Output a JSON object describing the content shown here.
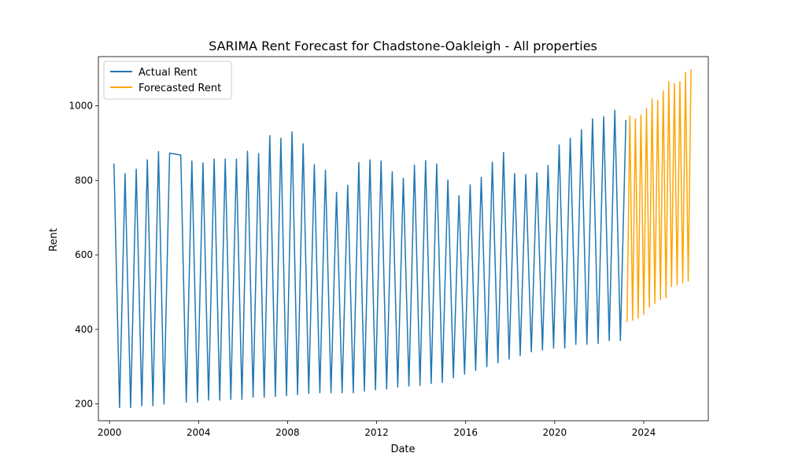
{
  "chart_data": {
    "type": "line",
    "title": "SARIMA Rent Forecast for Chadstone-Oakleigh - All properties",
    "xlabel": "Date",
    "ylabel": "Rent",
    "xlim": [
      1999.5,
      2026.9
    ],
    "ylim": [
      155,
      1132
    ],
    "x_ticks": [
      {
        "value": 2000,
        "label": "2000"
      },
      {
        "value": 2004,
        "label": "2004"
      },
      {
        "value": 2008,
        "label": "2008"
      },
      {
        "value": 2012,
        "label": "2012"
      },
      {
        "value": 2016,
        "label": "2016"
      },
      {
        "value": 2020,
        "label": "2020"
      },
      {
        "value": 2024,
        "label": "2024"
      }
    ],
    "y_ticks": [
      {
        "value": 200,
        "label": "200"
      },
      {
        "value": 400,
        "label": "400"
      },
      {
        "value": 600,
        "label": "600"
      },
      {
        "value": 800,
        "label": "800"
      },
      {
        "value": 1000,
        "label": "1000"
      }
    ],
    "grid": false,
    "legend_position": "top-left",
    "series": [
      {
        "name": "Actual Rent",
        "color": "#1f77b4",
        "x": [
          2000.2,
          2000.45,
          2000.7,
          2000.95,
          2001.2,
          2001.45,
          2001.7,
          2001.95,
          2002.2,
          2002.45,
          2002.7,
          2003.2,
          2003.45,
          2003.7,
          2003.95,
          2004.2,
          2004.45,
          2004.7,
          2004.95,
          2005.2,
          2005.45,
          2005.7,
          2005.95,
          2006.2,
          2006.45,
          2006.7,
          2006.95,
          2007.2,
          2007.45,
          2007.7,
          2007.95,
          2008.2,
          2008.45,
          2008.7,
          2008.95,
          2009.2,
          2009.45,
          2009.7,
          2009.95,
          2010.2,
          2010.45,
          2010.7,
          2010.95,
          2011.2,
          2011.45,
          2011.7,
          2011.95,
          2012.2,
          2012.45,
          2012.7,
          2012.95,
          2013.2,
          2013.45,
          2013.7,
          2013.95,
          2014.2,
          2014.45,
          2014.7,
          2014.95,
          2015.2,
          2015.45,
          2015.7,
          2015.95,
          2016.2,
          2016.45,
          2016.7,
          2016.95,
          2017.2,
          2017.45,
          2017.7,
          2017.95,
          2018.2,
          2018.45,
          2018.7,
          2018.95,
          2019.2,
          2019.45,
          2019.7,
          2019.95,
          2020.2,
          2020.45,
          2020.7,
          2020.95,
          2021.2,
          2021.45,
          2021.7,
          2021.95,
          2022.2,
          2022.45,
          2022.7,
          2022.95,
          2023.2
        ],
        "values": [
          845,
          190,
          818,
          190,
          830,
          195,
          855,
          195,
          877,
          200,
          873,
          868,
          205,
          852,
          205,
          847,
          210,
          857,
          210,
          857,
          212,
          857,
          212,
          878,
          218,
          872,
          218,
          920,
          220,
          913,
          222,
          930,
          225,
          898,
          228,
          842,
          230,
          827,
          230,
          768,
          230,
          787,
          230,
          848,
          235,
          855,
          238,
          852,
          240,
          823,
          245,
          806,
          248,
          841,
          250,
          853,
          255,
          844,
          258,
          801,
          270,
          759,
          280,
          788,
          290,
          808,
          300,
          849,
          310,
          875,
          320,
          818,
          330,
          816,
          340,
          820,
          345,
          840,
          350,
          895,
          350,
          913,
          360,
          936,
          360,
          965,
          362,
          971,
          370,
          988,
          370,
          962
        ]
      },
      {
        "name": "Forecasted Rent",
        "color": "#ffa500",
        "x": [
          2023.25,
          2023.375,
          2023.5,
          2023.625,
          2023.75,
          2023.875,
          2024.0,
          2024.125,
          2024.25,
          2024.375,
          2024.5,
          2024.625,
          2024.75,
          2024.875,
          2025.0,
          2025.125,
          2025.25,
          2025.375,
          2025.5,
          2025.625,
          2025.75,
          2025.875,
          2026.0,
          2026.125
        ],
        "values": [
          420,
          973,
          425,
          965,
          430,
          975,
          440,
          993,
          460,
          1018,
          470,
          1015,
          480,
          1040,
          485,
          1065,
          515,
          1060,
          520,
          1065,
          525,
          1090,
          530,
          1098
        ]
      }
    ]
  }
}
